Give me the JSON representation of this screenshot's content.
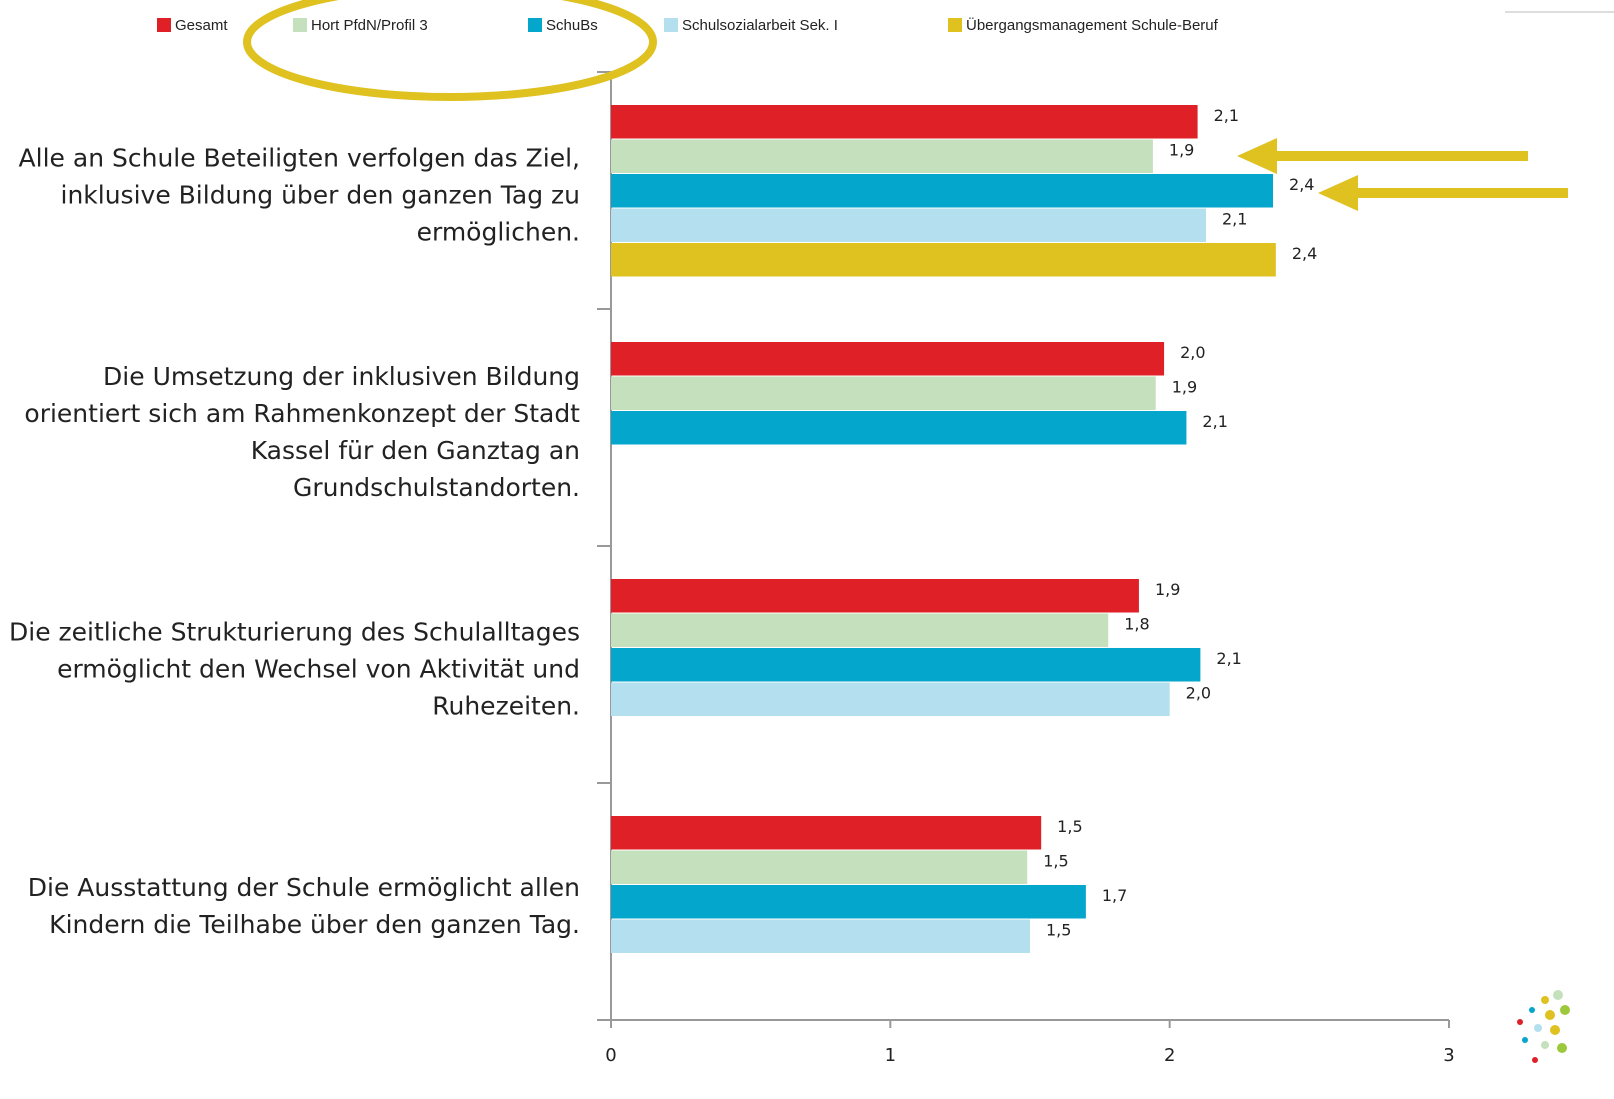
{
  "chart_data": {
    "type": "hbar",
    "categories": [
      "Alle an Schule Beteiligten verfolgen das Ziel, inklusive Bildung über den ganzen Tag zu ermöglichen.",
      "Die Umsetzung der inklusiven Bildung orientiert sich am Rahmenkonzept der Stadt Kassel für den Ganztag an Grundschulstandorten.",
      "Die zeitliche Strukturierung des Schulalltages ermöglicht den Wechsel von Aktivität und Ruhezeiten.",
      "Die Ausstattung der Schule ermöglicht allen Kindern die Teilhabe über den ganzen Tag."
    ],
    "series": [
      {
        "name": "Gesamt",
        "color": "#e02027",
        "values": [
          2.1,
          1.98,
          1.89,
          1.54
        ],
        "value_labels": [
          "2,1",
          "2,0",
          "1,9",
          "1,5"
        ]
      },
      {
        "name": "Hort PfdN/Profil 3",
        "color": "#c5e0bc",
        "values": [
          1.94,
          1.95,
          1.78,
          1.49
        ],
        "value_labels": [
          "1,9",
          "1,9",
          "1,8",
          "1,5"
        ]
      },
      {
        "name": "SchuBs",
        "color": "#04a6cc",
        "values": [
          2.37,
          2.06,
          2.11,
          1.7
        ],
        "value_labels": [
          "2,4",
          "2,1",
          "2,1",
          "1,7"
        ]
      },
      {
        "name": "Schulsozialarbeit Sek. I",
        "color": "#b3dfee",
        "values": [
          2.13,
          null,
          2.0,
          1.5
        ],
        "value_labels": [
          "2,1",
          null,
          "2,0",
          "1,5"
        ]
      },
      {
        "name": "Übergangsmanagement Schule-Beruf",
        "color": "#dfc11f",
        "values": [
          2.38,
          null,
          null,
          null
        ],
        "value_labels": [
          "2,4",
          null,
          null,
          null
        ]
      }
    ],
    "xlim": [
      0,
      3
    ],
    "xticks": [
      0,
      1,
      2,
      3
    ]
  }
}
